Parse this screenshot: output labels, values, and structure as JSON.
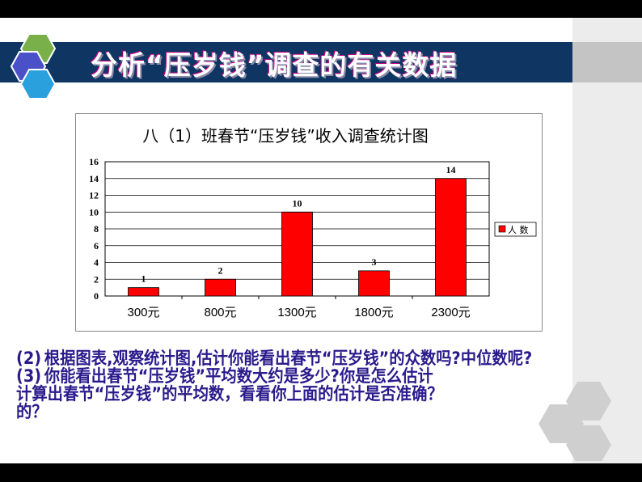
{
  "slide": {
    "title": "分析“压岁钱”调查的有关数据",
    "questions": {
      "q2_label": "(2)",
      "q3_label": "(3)",
      "line1a": "根据图表,观察统计图,估计你能看出春节“压岁钱”的众数吗?中位数呢?",
      "line1b": "你能看出春节“压岁钱”平均数大约是多少?你是怎么估计",
      "line2": "计算出春节“压岁钱”的平均数，看看你上面的估计是否准确？",
      "line3": "的？"
    },
    "colors": {
      "banner": "#0f3563",
      "bar": "#ff0000",
      "text": "#2a1a8c"
    }
  },
  "chart_data": {
    "type": "bar",
    "title": "八（1）班春节“压岁钱”收入调查统计图",
    "categories": [
      "300元",
      "800元",
      "1300元",
      "1800元",
      "2300元"
    ],
    "series": [
      {
        "name": "人 数",
        "values": [
          1,
          2,
          10,
          3,
          14
        ]
      }
    ],
    "yticks": [
      "0",
      "2",
      "4",
      "6",
      "8",
      "10",
      "12",
      "14",
      "16"
    ],
    "ylim": [
      0,
      16
    ],
    "grid": true,
    "legend": "right",
    "data_labels": true
  }
}
